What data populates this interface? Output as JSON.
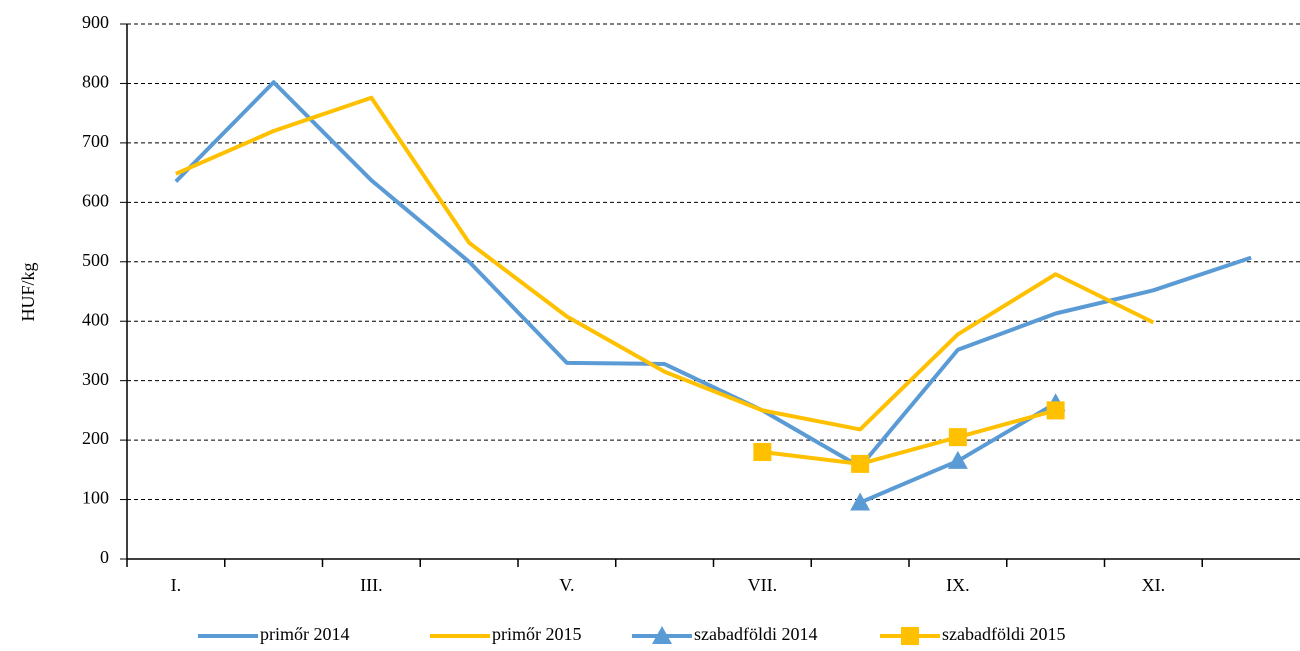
{
  "chart_data": {
    "type": "line",
    "y_label": "HUF/kg",
    "categories": [
      "I.",
      null,
      "III.",
      null,
      "V.",
      null,
      "VII.",
      null,
      "IX.",
      null,
      "XI.",
      null
    ],
    "series": [
      {
        "name": "primőr 2014",
        "color": "#5b9bd5",
        "marker": null,
        "values": [
          635,
          802,
          637,
          500,
          330,
          328,
          250,
          155,
          352,
          413,
          452,
          507
        ]
      },
      {
        "name": "primőr 2015",
        "color": "#ffc000",
        "marker": null,
        "values": [
          648,
          720,
          776,
          532,
          408,
          315,
          250,
          218,
          378,
          479,
          398,
          null
        ]
      },
      {
        "name": "szabadföldi 2014",
        "color": "#5b9bd5",
        "marker": "triangle",
        "values": [
          null,
          null,
          null,
          null,
          null,
          null,
          null,
          95,
          165,
          262,
          null,
          null
        ]
      },
      {
        "name": "szabadföldi 2015",
        "color": "#ffc000",
        "marker": "square",
        "values": [
          null,
          null,
          null,
          null,
          null,
          null,
          180,
          160,
          205,
          250,
          null,
          null
        ]
      }
    ],
    "ylim": [
      0,
      900
    ],
    "yticks": [
      0,
      100,
      200,
      300,
      400,
      500,
      600,
      700,
      800,
      900
    ],
    "grid": true,
    "legend": "bottom"
  }
}
